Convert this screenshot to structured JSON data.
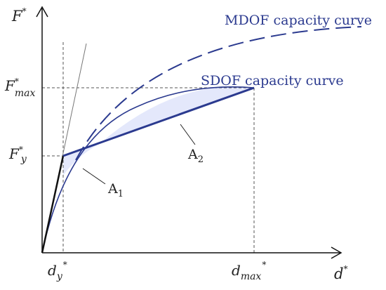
{
  "axes": {
    "y_axis": {
      "symbol": "F",
      "superscript": "*"
    },
    "x_axis": {
      "symbol": "d",
      "superscript": "*"
    }
  },
  "tick_labels": {
    "f_max": {
      "symbol": "F",
      "superscript": "*",
      "subscript": "max"
    },
    "f_y": {
      "symbol": "F",
      "superscript": "*",
      "subscript": "y"
    },
    "d_y": {
      "symbol": "d",
      "subscript": "y",
      "superscript": "*"
    },
    "d_max": {
      "symbol": "d",
      "subscript": "max",
      "superscript": "*"
    }
  },
  "curves": {
    "mdof": {
      "label": "MDOF capacity curve"
    },
    "sdof": {
      "label": "SDOF capacity curve"
    }
  },
  "areas": {
    "a1": {
      "symbol": "A",
      "subscript": "1"
    },
    "a2": {
      "symbol": "A",
      "subscript": "2"
    }
  },
  "colors": {
    "curve_blue": "#2b3a8f",
    "area_fill": "#e4e8fb",
    "axis": "#111111",
    "guide": "#555555",
    "elastic_line": "#222222"
  }
}
